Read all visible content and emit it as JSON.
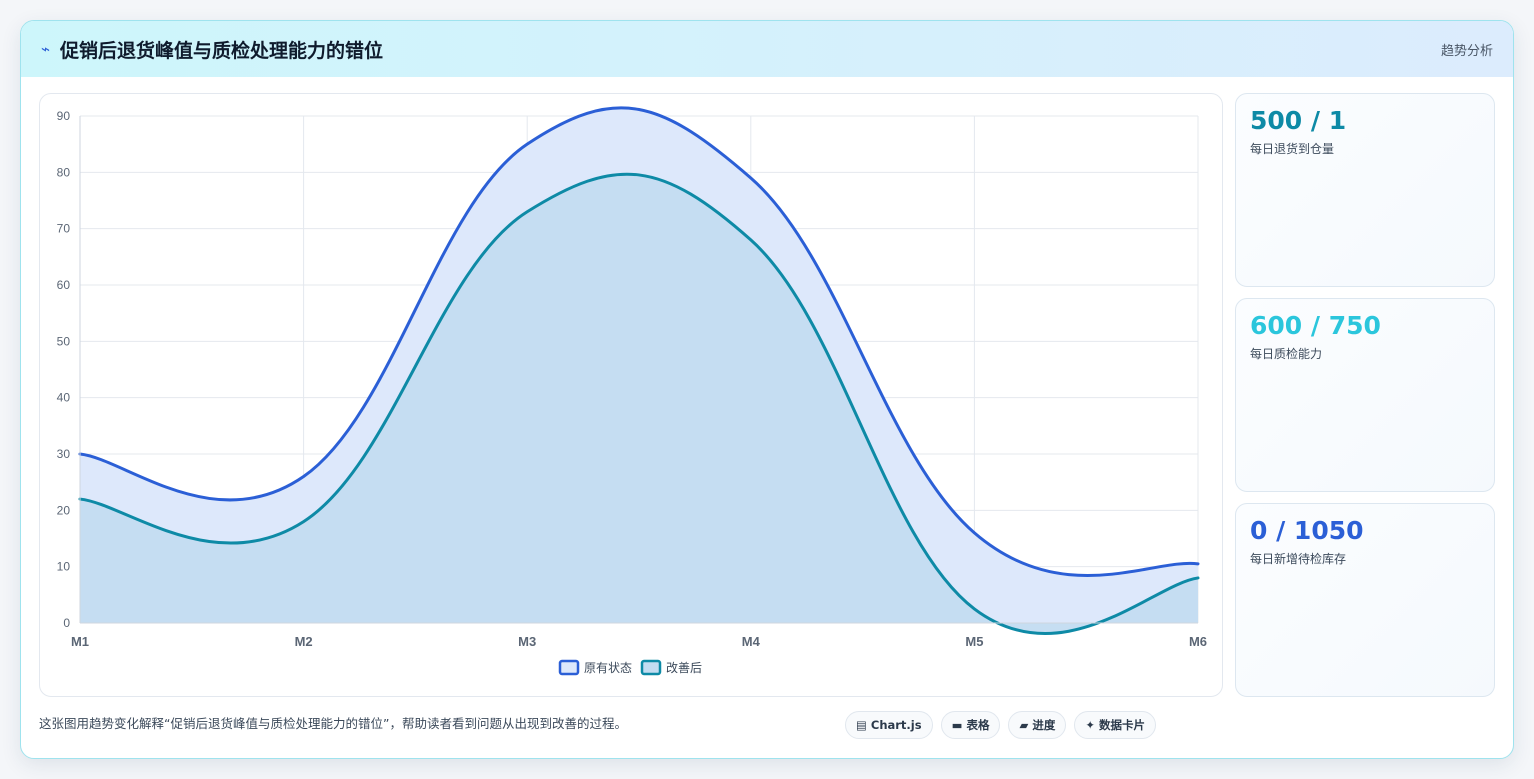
{
  "header": {
    "icon": "bolt-icon",
    "title": "促销后退货峰值与质检处理能力的错位",
    "tag": "趋势分析"
  },
  "stats": [
    {
      "value": "500 / 1",
      "label": "每日退货到仓量",
      "color": "#0e8aa6"
    },
    {
      "value": "600 / 750",
      "label": "每日质检能力",
      "color": "#2bc6dc"
    },
    {
      "value": "0 / 1050",
      "label": "每日新增待检库存",
      "color": "#2b5fd6"
    }
  ],
  "footer": {
    "description": "这张图用趋势变化解释“促销后退货峰值与质检处理能力的错位”，帮助读者看到问题从出现到改善的过程。",
    "chips": [
      {
        "icon": "chart-icon",
        "glyph": "▤",
        "label": "Chart.js"
      },
      {
        "icon": "table-icon",
        "glyph": "▬",
        "label": "表格"
      },
      {
        "icon": "progress-icon",
        "glyph": "▰",
        "label": "进度"
      },
      {
        "icon": "sparkle-icon",
        "glyph": "✦",
        "label": "数据卡片"
      }
    ]
  },
  "chart_data": {
    "type": "area",
    "categories": [
      "M1",
      "M2",
      "M3",
      "M4",
      "M5",
      "M6"
    ],
    "ylim": [
      0,
      90
    ],
    "yticks": [
      0,
      10,
      20,
      30,
      40,
      50,
      60,
      70,
      80,
      90
    ],
    "grid": true,
    "legend_position": "bottom",
    "series": [
      {
        "name": "原有状态",
        "values": [
          30,
          26,
          85,
          79,
          16,
          10.5
        ],
        "color": "#2b5fd6",
        "fill": "#dde8fb"
      },
      {
        "name": "改善后",
        "values": [
          22,
          18,
          73,
          68,
          2.5,
          8
        ],
        "color": "#0e8aa6",
        "fill": "#c3dcf1"
      }
    ]
  }
}
